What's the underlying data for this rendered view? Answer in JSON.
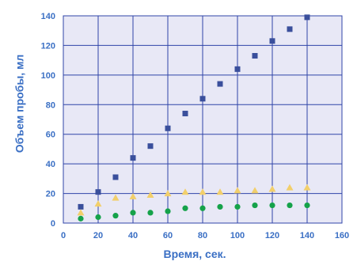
{
  "chart_data": {
    "type": "scatter",
    "title": "",
    "xlabel": "Время, сек.",
    "ylabel": "Объем пробы, мл",
    "xlim": [
      0,
      160
    ],
    "ylim": [
      0,
      140
    ],
    "x_ticks": [
      "0",
      "20",
      "40",
      "60",
      "80",
      "100",
      "120",
      "140",
      "160"
    ],
    "y_ticks": [
      "0",
      "20",
      "40",
      "60",
      "80",
      "100",
      "120",
      "140"
    ],
    "grid": true,
    "legend": "none",
    "series": [
      {
        "marker": "square",
        "color": "#3a4f9c",
        "points": [
          [
            10,
            11
          ],
          [
            20,
            21
          ],
          [
            30,
            31
          ],
          [
            40,
            44
          ],
          [
            50,
            52
          ],
          [
            60,
            64
          ],
          [
            70,
            74
          ],
          [
            80,
            84
          ],
          [
            90,
            94
          ],
          [
            100,
            104
          ],
          [
            110,
            113
          ],
          [
            120,
            123
          ],
          [
            130,
            131
          ],
          [
            140,
            139
          ]
        ]
      },
      {
        "marker": "triangle",
        "color": "#f2cf6b",
        "points": [
          [
            10,
            7
          ],
          [
            20,
            13
          ],
          [
            30,
            17
          ],
          [
            40,
            18
          ],
          [
            50,
            19
          ],
          [
            60,
            20
          ],
          [
            70,
            21
          ],
          [
            80,
            21
          ],
          [
            90,
            21
          ],
          [
            100,
            22
          ],
          [
            110,
            22
          ],
          [
            120,
            23
          ],
          [
            130,
            24
          ],
          [
            140,
            24
          ]
        ]
      },
      {
        "marker": "circle",
        "color": "#15a24a",
        "points": [
          [
            10,
            3
          ],
          [
            20,
            4
          ],
          [
            30,
            5
          ],
          [
            40,
            7
          ],
          [
            50,
            7
          ],
          [
            60,
            8
          ],
          [
            70,
            10
          ],
          [
            80,
            10
          ],
          [
            90,
            11
          ],
          [
            100,
            11
          ],
          [
            110,
            12
          ],
          [
            120,
            12
          ],
          [
            130,
            12
          ],
          [
            140,
            12
          ]
        ]
      }
    ],
    "colors": {
      "plot_background": "#e8e8f6",
      "grid": "#2f44a8",
      "text": "#3a6fc4"
    }
  }
}
